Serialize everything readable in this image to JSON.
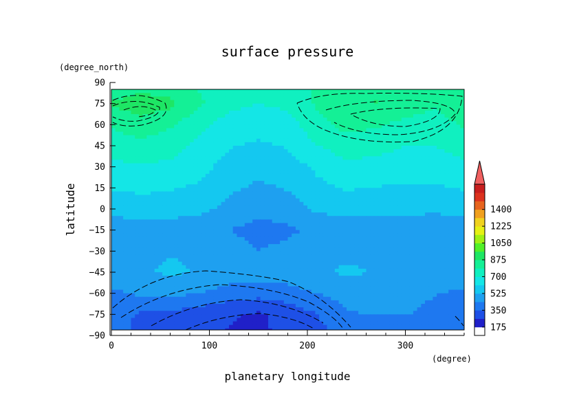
{
  "chart_data": {
    "type": "heatmap",
    "title": "surface pressure",
    "xlabel": "planetary longitude",
    "ylabel": "latitude",
    "x_unit": "(degree)",
    "y_unit": "(degree_north)",
    "xlim": [
      0,
      360
    ],
    "ylim": [
      -90,
      90
    ],
    "x_ticks": [
      0,
      100,
      200,
      300
    ],
    "y_ticks": [
      90,
      75,
      60,
      45,
      30,
      15,
      0,
      -15,
      -30,
      -45,
      -60,
      -75,
      -90
    ],
    "x_tick_labels": [
      "0",
      "100",
      "200",
      "300"
    ],
    "y_tick_labels": [
      "90",
      "75",
      "60",
      "45",
      "30",
      "15",
      "0",
      "−15",
      "−30",
      "−45",
      "−60",
      "−75",
      "−90"
    ],
    "colorbar": {
      "min": 87.5,
      "max": 1487.5,
      "step": 87.5,
      "extend": "max",
      "ticks": [
        175,
        350,
        525,
        700,
        875,
        1050,
        1225,
        1400
      ],
      "tick_labels": [
        "175",
        "350",
        "525",
        "700",
        "875",
        "1050",
        "1225",
        "1400"
      ],
      "colors": [
        "#ffffff",
        "#2020c8",
        "#1e50e6",
        "#1e78f0",
        "#1ea0f0",
        "#14c8f0",
        "#14e6e6",
        "#10f0c0",
        "#14f096",
        "#1ee664",
        "#50f028",
        "#a0f014",
        "#e6f014",
        "#f0d21e",
        "#f0a01e",
        "#e6641e",
        "#dc321e",
        "#c81e1e"
      ],
      "extend_color": "#f06060"
    },
    "grid_lon": [
      0,
      30,
      60,
      90,
      120,
      150,
      180,
      210,
      240,
      270,
      300,
      330,
      360
    ],
    "grid_lat": [
      85,
      75,
      60,
      45,
      30,
      15,
      0,
      -15,
      -30,
      -45,
      -60,
      -75,
      -85
    ],
    "values": [
      [
        820,
        860,
        830,
        780,
        720,
        700,
        720,
        800,
        820,
        840,
        820,
        800,
        820
      ],
      [
        880,
        930,
        900,
        800,
        730,
        700,
        720,
        800,
        850,
        880,
        840,
        800,
        880
      ],
      [
        800,
        840,
        800,
        720,
        660,
        640,
        660,
        760,
        820,
        800,
        760,
        740,
        800
      ],
      [
        740,
        760,
        740,
        680,
        620,
        600,
        620,
        700,
        740,
        730,
        700,
        700,
        740
      ],
      [
        680,
        690,
        680,
        640,
        580,
        550,
        570,
        630,
        680,
        670,
        650,
        650,
        680
      ],
      [
        620,
        630,
        620,
        600,
        540,
        510,
        530,
        590,
        620,
        610,
        600,
        600,
        620
      ],
      [
        560,
        570,
        570,
        550,
        500,
        470,
        490,
        540,
        560,
        560,
        550,
        550,
        560
      ],
      [
        470,
        470,
        470,
        460,
        440,
        400,
        420,
        460,
        470,
        470,
        470,
        440,
        470
      ],
      [
        510,
        510,
        520,
        510,
        480,
        440,
        460,
        490,
        500,
        500,
        500,
        490,
        510
      ],
      [
        500,
        510,
        540,
        520,
        490,
        480,
        490,
        510,
        540,
        520,
        500,
        500,
        500
      ],
      [
        420,
        450,
        460,
        440,
        400,
        380,
        400,
        440,
        470,
        470,
        460,
        440,
        420
      ],
      [
        380,
        340,
        330,
        300,
        270,
        250,
        290,
        350,
        430,
        440,
        440,
        420,
        380
      ],
      [
        370,
        340,
        310,
        280,
        260,
        250,
        280,
        330,
        390,
        400,
        420,
        410,
        370
      ]
    ],
    "contours": "dashed black contour lines over the high-latitude pressure centres (near 50 E and 300 E in the north, near 150 E in the south)"
  }
}
